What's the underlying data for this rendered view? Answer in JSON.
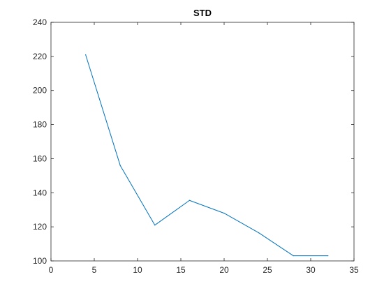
{
  "chart_data": {
    "type": "line",
    "title": "STD",
    "xlabel": "",
    "ylabel": "",
    "xlim": [
      0,
      35
    ],
    "ylim": [
      100,
      240
    ],
    "xticks": [
      0,
      5,
      10,
      15,
      20,
      25,
      30,
      35
    ],
    "yticks": [
      100,
      120,
      140,
      160,
      180,
      200,
      220,
      240
    ],
    "grid": false,
    "series": [
      {
        "color": "#0072BD",
        "x": [
          4,
          8,
          12,
          16,
          20,
          24,
          28,
          32
        ],
        "y": [
          221,
          156,
          121,
          135.5,
          128,
          116.5,
          103,
          103
        ]
      }
    ]
  }
}
